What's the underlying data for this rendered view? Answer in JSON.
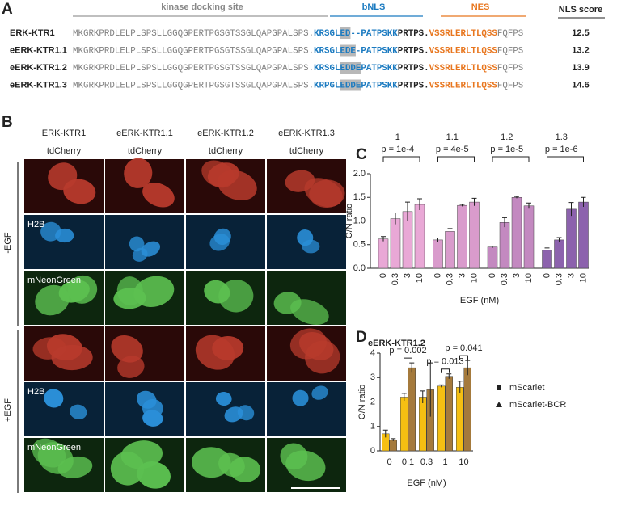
{
  "panels": {
    "a": "A",
    "b": "B",
    "c": "C",
    "d": "D"
  },
  "sequences": {
    "headers": {
      "docking": "kinase docking site",
      "bnls": "bNLS",
      "nes": "NES",
      "score": "NLS score"
    },
    "rows": [
      {
        "name": "ERK-KTR1",
        "docking": "MKGRKPRDLELPLSPSLLGGQGPERTPGSGTSSGLQAPGPALSPS.",
        "bnls_start": "KRSGL",
        "highlight": "ED",
        "bnls_end": "--PATPSKK",
        "linker": "PRTPS.",
        "nes": "VSSRLERLTLQSS",
        "tail": "FQFPS",
        "score": 12.5
      },
      {
        "name": "eERK-KTR1.1",
        "docking": "MKGRKPRDLELPLSPSLLGGQGPERTPGSGTSSGLQAPGPALSPS.",
        "bnls_start": "KRSGL",
        "highlight": "EDE",
        "bnls_end": "-PATPSKK",
        "linker": "PRTPS.",
        "nes": "VSSRLERLTLQSS",
        "tail": "FQFPS",
        "score": 13.2
      },
      {
        "name": "eERK-KTR1.2",
        "docking": "MKGRKPRDLELPLSPSLLGGQGPERTPGSGTSSGLQAPGPALSPS.",
        "bnls_start": "KRSGL",
        "highlight": "EDDE",
        "bnls_end": "PATPSKK",
        "linker": "PRTPS.",
        "nes": "VSSRLERLTLQSS",
        "tail": "FQFPS",
        "score": 13.9
      },
      {
        "name": "eERK-KTR1.3",
        "docking": "MKGRKPRDLELPLSPSLLGGQGPERTPGSGTSSGLQAPGPALSPS.",
        "bnls_start": "KRPGL",
        "highlight": "EDDE",
        "bnls_end": "PATPSKK",
        "linker": "PRTPS.",
        "nes": "VSSRLERLTLQSS",
        "tail": "FQFPS",
        "score": 14.6
      }
    ]
  },
  "images": {
    "columns": [
      {
        "name": "ERK-KTR1",
        "channel": "tdCherry"
      },
      {
        "name": "eERK-KTR1.1",
        "channel": "tdCherry"
      },
      {
        "name": "eERK-KTR1.2",
        "channel": "tdCherry"
      },
      {
        "name": "eERK-KTR1.3",
        "channel": "tdCherry"
      }
    ],
    "conditions": [
      "-EGF",
      "+EGF"
    ],
    "channel_labels": [
      "H2B",
      "mNeonGreen"
    ]
  },
  "chart_data": [
    {
      "type": "bar",
      "ylabel": "C/N ratio",
      "xlabel": "EGF (nM)",
      "categories": [
        "0",
        "0.3",
        "3",
        "10"
      ],
      "ylim": [
        0,
        2.0
      ],
      "yticks": [
        {
          "value": 0,
          "label": "0.0"
        },
        0.5,
        {
          "value": 1.0,
          "label": "1.0"
        },
        1.5,
        {
          "value": 2.0,
          "label": "2.0"
        }
      ],
      "series": [
        {
          "name": "1",
          "color": "#e9a8d6",
          "p_value": "p = 1e-4",
          "values": [
            0.62,
            1.05,
            1.2,
            1.35
          ],
          "errors": [
            0.05,
            0.12,
            0.2,
            0.12
          ]
        },
        {
          "name": "1.1",
          "color": "#d99bcc",
          "p_value": "p = 4e-5",
          "values": [
            0.6,
            0.78,
            1.33,
            1.4
          ],
          "errors": [
            0.04,
            0.06,
            0.02,
            0.08
          ]
        },
        {
          "name": "1.2",
          "color": "#c389c0",
          "p_value": "p = 1e-5",
          "values": [
            0.45,
            0.97,
            1.5,
            1.32
          ],
          "errors": [
            0.02,
            0.1,
            0.02,
            0.06
          ]
        },
        {
          "name": "1.3",
          "color": "#8c62ad",
          "p_value": "p = 1e-6",
          "values": [
            0.38,
            0.6,
            1.25,
            1.4
          ],
          "errors": [
            0.05,
            0.05,
            0.14,
            0.1
          ]
        }
      ]
    },
    {
      "type": "bar",
      "title": "eERK-KTR1.2",
      "ylabel": "C/N ratio",
      "xlabel": "EGF (nM)",
      "categories": [
        "0",
        "0.1",
        "0.3",
        "1",
        "10"
      ],
      "ylim": [
        0,
        4
      ],
      "yticks": [
        0,
        1,
        2,
        3,
        4
      ],
      "p_values": [
        null,
        "p = 0.002",
        null,
        "p = 0.013",
        "p = 0.041"
      ],
      "series": [
        {
          "name": "mScarlet",
          "color": "#f5bf12",
          "marker": "square",
          "values": [
            0.7,
            2.2,
            2.2,
            2.65,
            2.6
          ],
          "errors": [
            0.15,
            0.15,
            0.25,
            0.05,
            0.25
          ]
        },
        {
          "name": "mScarlet-BCR",
          "color": "#a57a3c",
          "marker": "triangle",
          "values": [
            0.45,
            3.4,
            2.5,
            3.05,
            3.4
          ],
          "errors": [
            0.05,
            0.2,
            1.1,
            0.1,
            0.3
          ]
        }
      ]
    }
  ]
}
